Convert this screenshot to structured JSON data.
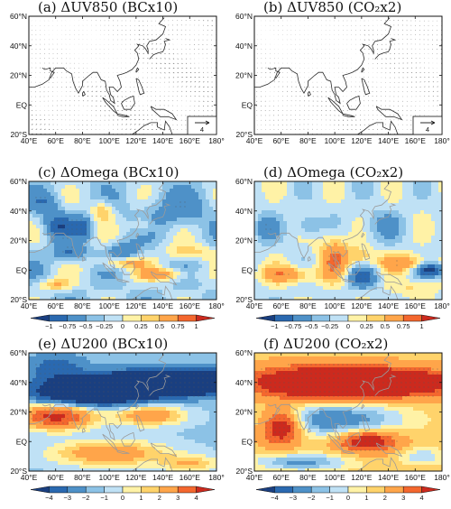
{
  "chart_data": [
    {
      "id": "a",
      "type": "vector-map",
      "label": "(a)",
      "title": "ΔUV850",
      "experiment": "BCx10",
      "x_ticks": [
        "40°E",
        "60°E",
        "80°E",
        "100°E",
        "120°E",
        "140°E",
        "160°E",
        "180°"
      ],
      "y_ticks": [
        "60°N",
        "40°N",
        "20°N",
        "EQ",
        "20°S"
      ],
      "reference_vector": "4"
    },
    {
      "id": "b",
      "type": "vector-map",
      "label": "(b)",
      "title": "ΔUV850",
      "experiment": "CO₂x2",
      "x_ticks": [
        "40°E",
        "60°E",
        "80°E",
        "100°E",
        "120°E",
        "140°E",
        "160°E",
        "180°"
      ],
      "y_ticks": [
        "60°N",
        "40°N",
        "20°N",
        "EQ",
        "20°S"
      ],
      "reference_vector": "4"
    },
    {
      "id": "c",
      "type": "heatmap",
      "label": "(c)",
      "title": "ΔOmega",
      "experiment": "BCx10",
      "x_ticks": [
        "40°E",
        "60°E",
        "80°E",
        "100°E",
        "120°E",
        "140°E",
        "160°E",
        "180°"
      ],
      "y_ticks": [
        "60°N",
        "40°N",
        "20°N",
        "EQ",
        "20°S"
      ],
      "colorbar_labels": [
        "−1",
        "−0.75",
        "−0.5",
        "−0.25",
        "0",
        "0.25",
        "0.5",
        "0.75",
        "1"
      ],
      "colorbar_range": [
        -1,
        1
      ]
    },
    {
      "id": "d",
      "type": "heatmap",
      "label": "(d)",
      "title": "ΔOmega",
      "experiment": "CO₂x2",
      "x_ticks": [
        "40°E",
        "60°E",
        "80°E",
        "100°E",
        "120°E",
        "140°E",
        "160°E",
        "180°"
      ],
      "y_ticks": [
        "60°N",
        "40°N",
        "20°N",
        "EQ",
        "20°S"
      ],
      "colorbar_labels": [
        "−1",
        "−0.75",
        "−0.5",
        "−0.25",
        "0",
        "0.25",
        "0.5",
        "0.75",
        "1"
      ],
      "colorbar_range": [
        -1,
        1
      ]
    },
    {
      "id": "e",
      "type": "heatmap",
      "label": "(e)",
      "title": "ΔU200",
      "experiment": "BCx10",
      "x_ticks": [
        "40°E",
        "60°E",
        "80°E",
        "100°E",
        "120°E",
        "140°E",
        "160°E",
        "180°"
      ],
      "y_ticks": [
        "60°N",
        "40°N",
        "20°N",
        "EQ",
        "20°S"
      ],
      "colorbar_labels": [
        "−4",
        "−3",
        "−2",
        "−1",
        "0",
        "1",
        "2",
        "3",
        "4"
      ],
      "colorbar_range": [
        -4,
        4
      ]
    },
    {
      "id": "f",
      "type": "heatmap",
      "label": "(f)",
      "title": "ΔU200",
      "experiment": "CO₂x2",
      "x_ticks": [
        "40°E",
        "60°E",
        "80°E",
        "100°E",
        "120°E",
        "140°E",
        "160°E",
        "180°"
      ],
      "y_ticks": [
        "60°N",
        "40°N",
        "20°N",
        "EQ",
        "20°S"
      ],
      "colorbar_labels": [
        "−4",
        "−3",
        "−2",
        "−1",
        "0",
        "1",
        "2",
        "3",
        "4"
      ],
      "colorbar_range": [
        -4,
        4
      ]
    }
  ],
  "colors": {
    "palette": [
      "#1a3f80",
      "#2a69b0",
      "#4e91c8",
      "#8cc2e6",
      "#bfe1f5",
      "#fff2a6",
      "#ffd36b",
      "#ffa54a",
      "#f4672e",
      "#cc2a1e"
    ]
  }
}
